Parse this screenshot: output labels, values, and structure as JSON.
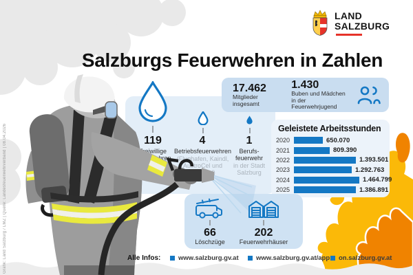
{
  "meta": {
    "credit": "Grafik: Land Salzburg / LMZ  |  Quelle: Landesfeuerwehrverband  |  08.04.2026"
  },
  "logo": {
    "line1": "LAND",
    "line2": "SALZBURG"
  },
  "title": "Salzburgs Feuerwehren in Zahlen",
  "members": {
    "total_value": "17.462",
    "total_label": "Mitglieder insgesamt",
    "youth_value": "1.430",
    "youth_label": "Buben und Mädchen\nin der Feuerwehrjugend",
    "icon": "people-icon"
  },
  "brigades": [
    {
      "value": "119",
      "label": "Freiwillige\nFeuerwehren",
      "note": "",
      "icon": "water-drop-large-icon"
    },
    {
      "value": "4",
      "label": "Betriebsfeuerwehren",
      "note": "(Flughafen, Kaindl,\nAustroCel und\nVerbund)",
      "icon": "water-drop-medium-icon"
    },
    {
      "value": "1",
      "label": "Berufs-\nfeuerwehr",
      "note": "in der Stadt\nSalzburg",
      "icon": "water-drop-small-icon"
    }
  ],
  "chart_data": {
    "type": "bar",
    "orientation": "horizontal",
    "title": "Geleistete Arbeitsstunden",
    "categories": [
      "2020",
      "2021",
      "2022",
      "2023",
      "2024",
      "2025"
    ],
    "values": [
      650070,
      809390,
      1393501,
      1292763,
      1464799,
      1386891
    ],
    "value_labels": [
      "650.070",
      "809.390",
      "1.393.501",
      "1.292.763",
      "1.464.799",
      "1.386.891"
    ],
    "xlabel": "",
    "ylabel": "",
    "xlim": [
      0,
      1464799
    ],
    "grid": false,
    "legend": "none",
    "bar_color": "#1478c4"
  },
  "equipment": [
    {
      "value": "66",
      "label": "Löschzüge",
      "icon": "fire-truck-icon"
    },
    {
      "value": "202",
      "label": "Feuerwehrhäuser",
      "icon": "fire-station-icon"
    }
  ],
  "footer": {
    "label": "Alle Infos:",
    "links": [
      "www.salzburg.gv.at",
      "www.salzburg.gv.at/app",
      "on.salzburg.gv.at"
    ]
  },
  "colors": {
    "accent_blue": "#1478c4",
    "box_blue_dark": "#c9ddf0",
    "box_blue_light": "#e3eef8",
    "box_chart": "#ecf3fa",
    "box_equip": "#cfe2f3",
    "note_gray": "#aab3bc",
    "flame_yellow": "#fbb908",
    "flame_orange": "#f08300",
    "logo_red": "#e6332a"
  }
}
